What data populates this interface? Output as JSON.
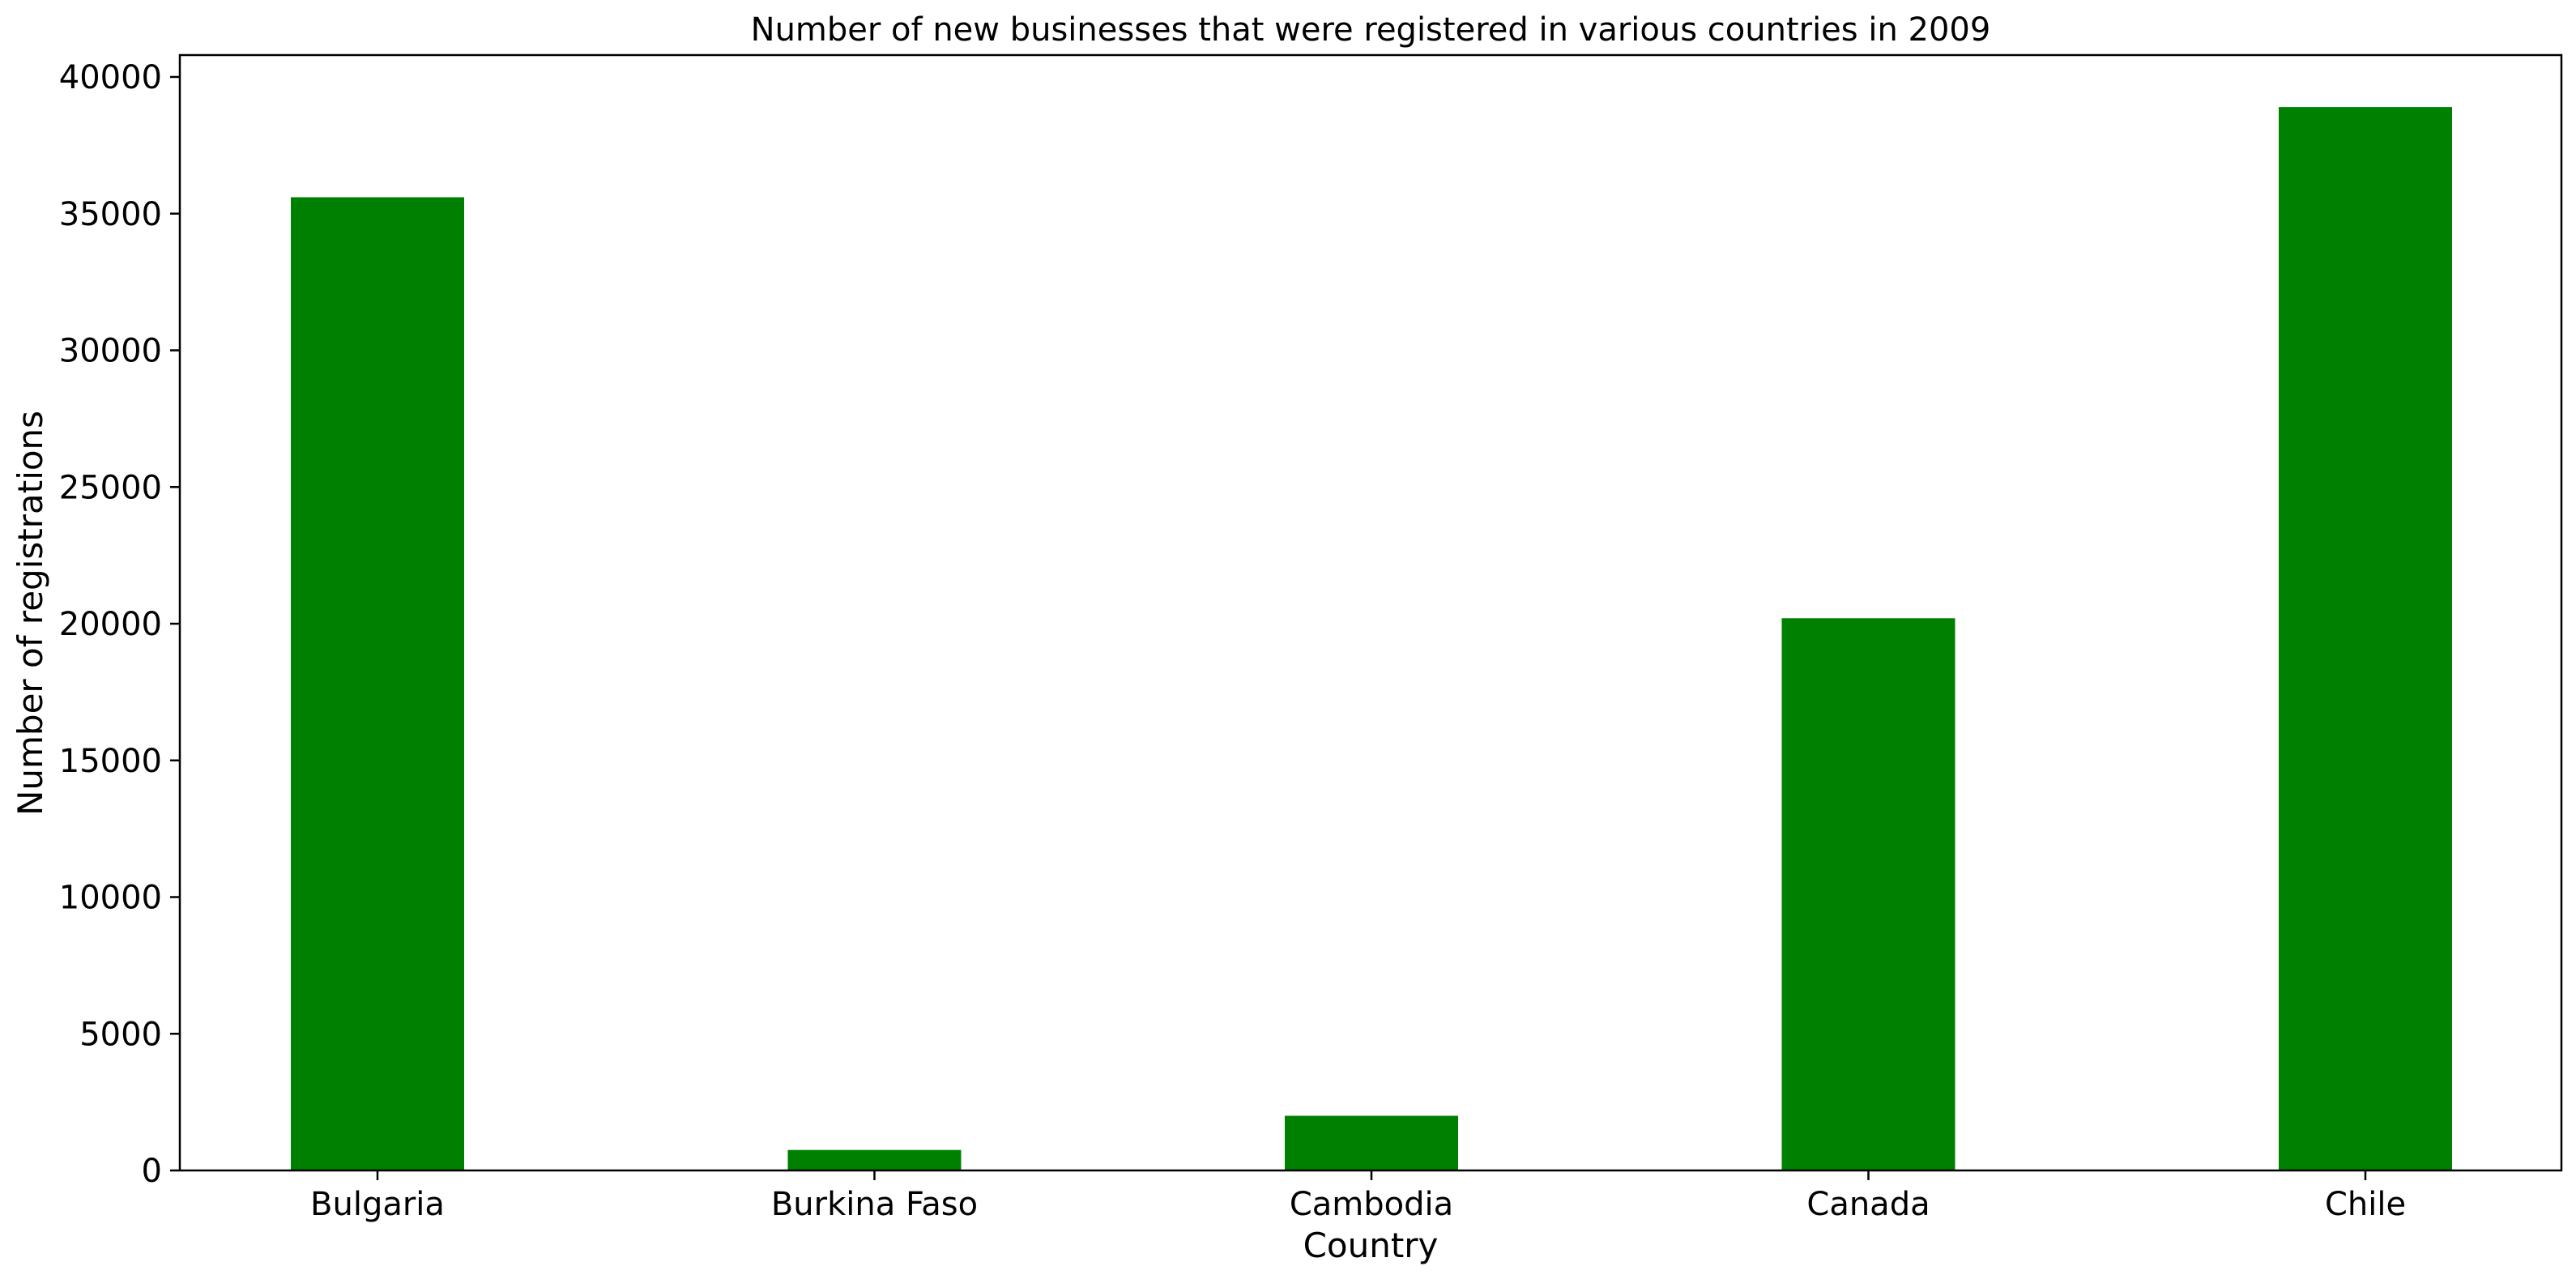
{
  "chart_data": {
    "type": "bar",
    "title": "Number of new businesses that were registered in various countries in 2009",
    "xlabel": "Country",
    "ylabel": "Number of registrations",
    "categories": [
      "Bulgaria",
      "Burkina Faso",
      "Cambodia",
      "Canada",
      "Chile"
    ],
    "values": [
      35600,
      750,
      2000,
      20200,
      38900
    ],
    "ylim": [
      0,
      40800
    ],
    "yticks": [
      0,
      5000,
      10000,
      15000,
      20000,
      25000,
      30000,
      35000,
      40000
    ],
    "bar_color": "#008000",
    "grid": false,
    "legend": "none"
  }
}
